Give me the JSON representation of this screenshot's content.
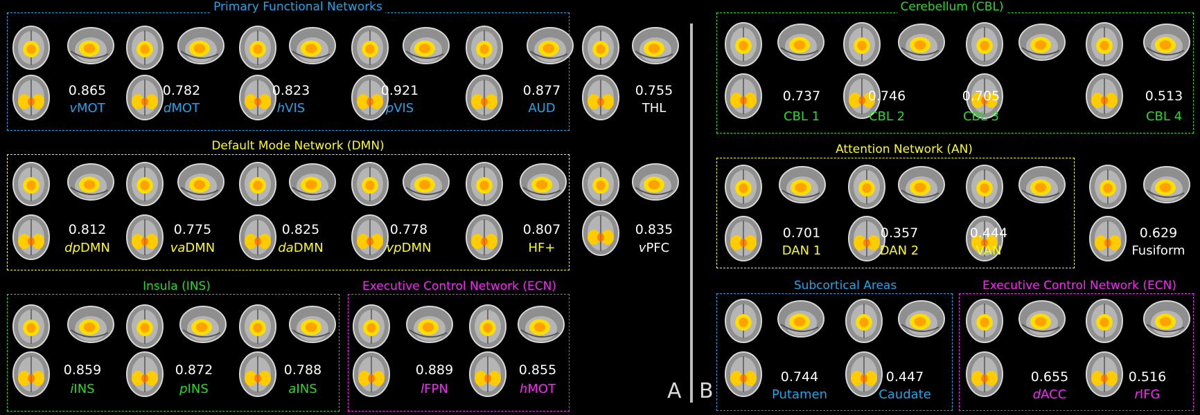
{
  "colors": {
    "blue": "#1aa7ec",
    "yellow": "#ffff00",
    "green": "#22dd22",
    "magenta": "#ff22ff",
    "white": "#ffffff",
    "gray": "#bdbdbd"
  },
  "panels": {
    "a": "A",
    "b": "B"
  },
  "groups": [
    {
      "title": "Primary Functional Networks",
      "color": "blue"
    },
    {
      "title": "Default Mode Network (DMN)",
      "color": "yellow"
    },
    {
      "title": "Insula (INS)",
      "color": "green"
    },
    {
      "title": "Executive Control Network (ECN)",
      "color": "magenta"
    },
    {
      "title": "Cerebellum (CBL)",
      "color": "green"
    },
    {
      "title": "Attention Network (AN)",
      "color": "yellow"
    },
    {
      "title": "Subcortical Areas",
      "color": "blue"
    },
    {
      "title": "Executive Control Network (ECN)",
      "color": "magenta"
    }
  ],
  "networks": [
    {
      "score": "0.865",
      "pre": "v",
      "label": "MOT",
      "color": "blue"
    },
    {
      "score": "0.782",
      "pre": "d",
      "label": "MOT",
      "color": "blue"
    },
    {
      "score": "0.823",
      "pre": "h",
      "label": "VIS",
      "color": "blue"
    },
    {
      "score": "0.921",
      "pre": "p",
      "label": "VIS",
      "color": "blue"
    },
    {
      "score": "0.877",
      "pre": "",
      "label": "AUD",
      "color": "blue"
    },
    {
      "score": "0.755",
      "pre": "",
      "label": "THL",
      "color": "white"
    },
    {
      "score": "0.812",
      "pre": "dp",
      "label": "DMN",
      "color": "yellow"
    },
    {
      "score": "0.775",
      "pre": "va",
      "label": "DMN",
      "color": "yellow"
    },
    {
      "score": "0.825",
      "pre": "da",
      "label": "DMN",
      "color": "yellow"
    },
    {
      "score": "0.778",
      "pre": "vp",
      "label": "DMN",
      "color": "yellow"
    },
    {
      "score": "0.807",
      "pre": "",
      "label": "HF+",
      "color": "yellow"
    },
    {
      "score": "0.835",
      "pre": "v",
      "label": "PFC",
      "color": "white"
    },
    {
      "score": "0.859",
      "pre": "i",
      "label": "INS",
      "color": "green"
    },
    {
      "score": "0.872",
      "pre": "p",
      "label": "INS",
      "color": "green"
    },
    {
      "score": "0.788",
      "pre": "a",
      "label": "INS",
      "color": "green"
    },
    {
      "score": "0.889",
      "pre": "l",
      "label": "FPN",
      "color": "magenta"
    },
    {
      "score": "0.855",
      "pre": "h",
      "label": "MOT",
      "color": "magenta"
    },
    {
      "score": "0.737",
      "pre": "",
      "label": "CBL 1",
      "color": "green"
    },
    {
      "score": "0.746",
      "pre": "",
      "label": "CBL 2",
      "color": "green"
    },
    {
      "score": "0.705",
      "pre": "",
      "label": "CBL 3",
      "color": "green"
    },
    {
      "score": "0.513",
      "pre": "",
      "label": "CBL 4",
      "color": "green"
    },
    {
      "score": "0.701",
      "pre": "",
      "label": "DAN 1",
      "color": "yellow"
    },
    {
      "score": "0.357",
      "pre": "",
      "label": "DAN 2",
      "color": "yellow"
    },
    {
      "score": "0.444",
      "pre": "",
      "label": "VAN",
      "color": "yellow"
    },
    {
      "score": "0.629",
      "pre": "",
      "label": "Fusiform",
      "color": "white"
    },
    {
      "score": "0.744",
      "pre": "",
      "label": "Putamen",
      "color": "blue"
    },
    {
      "score": "0.447",
      "pre": "",
      "label": "Caudate",
      "color": "blue"
    },
    {
      "score": "0.655",
      "pre": "d",
      "label": "ACC",
      "color": "magenta"
    },
    {
      "score": "0.516",
      "pre": "r",
      "label": "IFG",
      "color": "magenta"
    }
  ]
}
